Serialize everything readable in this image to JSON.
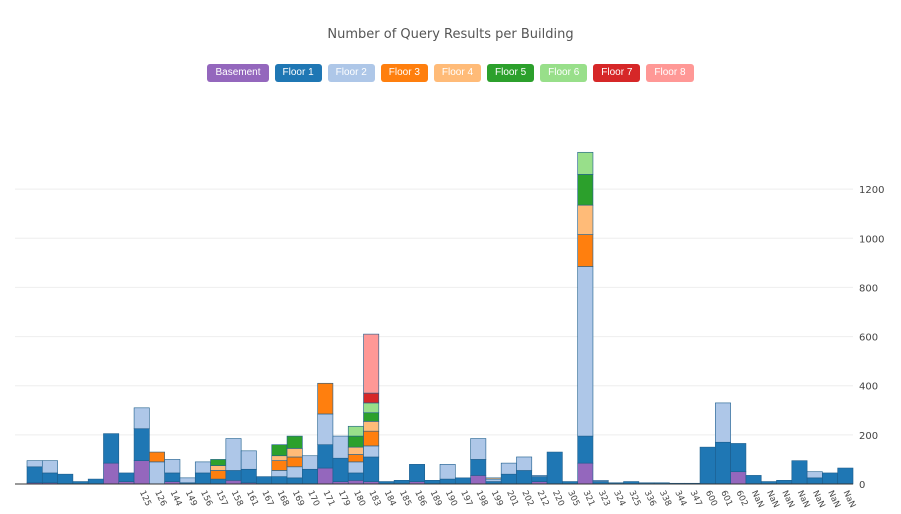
{
  "chart_data": {
    "type": "bar",
    "stacked": true,
    "title": "Number of Query Results per Building",
    "legend_position": "top-center",
    "grid": true,
    "y_axis_side": "right",
    "ylim": [
      0,
      1400
    ],
    "yticks": [
      0,
      200,
      400,
      600,
      800,
      1000,
      1200
    ],
    "categories": [
      "",
      "",
      "",
      "",
      "",
      "",
      "",
      "125",
      "126",
      "144",
      "149",
      "156",
      "157",
      "158",
      "161",
      "167",
      "168",
      "169",
      "170",
      "171",
      "179",
      "180",
      "183",
      "184",
      "185",
      "186",
      "189",
      "190",
      "197",
      "198",
      "199",
      "201",
      "202",
      "212",
      "220",
      "305",
      "321",
      "323",
      "324",
      "325",
      "336",
      "338",
      "344",
      "347",
      "600",
      "601",
      "602",
      "NaN",
      "NaN",
      "NaN",
      "NaN",
      "NaN",
      "NaN",
      "NaN"
    ],
    "series": [
      {
        "name": "Basement",
        "color": "#9467bd",
        "values": [
          5,
          5,
          0,
          0,
          0,
          85,
          10,
          95,
          0,
          10,
          0,
          0,
          0,
          15,
          5,
          0,
          0,
          0,
          0,
          65,
          10,
          15,
          10,
          0,
          0,
          10,
          0,
          0,
          0,
          35,
          0,
          0,
          0,
          10,
          0,
          0,
          85,
          0,
          0,
          0,
          0,
          0,
          0,
          0,
          0,
          0,
          50,
          0,
          0,
          0,
          0,
          0,
          0,
          0
        ]
      },
      {
        "name": "Floor 1",
        "color": "#1f77b4",
        "values": [
          65,
          40,
          40,
          10,
          20,
          120,
          35,
          130,
          0,
          35,
          5,
          45,
          20,
          40,
          55,
          30,
          30,
          25,
          60,
          95,
          95,
          30,
          100,
          10,
          15,
          70,
          15,
          20,
          25,
          65,
          10,
          40,
          55,
          20,
          130,
          10,
          110,
          10,
          5,
          10,
          5,
          5,
          3,
          3,
          150,
          170,
          115,
          35,
          10,
          15,
          95,
          25,
          45,
          65
        ]
      },
      {
        "name": "Floor 2",
        "color": "#aec7e8",
        "values": [
          25,
          50,
          0,
          0,
          0,
          0,
          0,
          85,
          90,
          55,
          20,
          45,
          0,
          130,
          75,
          0,
          25,
          45,
          55,
          125,
          90,
          45,
          45,
          0,
          0,
          0,
          0,
          60,
          0,
          85,
          10,
          45,
          55,
          5,
          0,
          0,
          690,
          5,
          0,
          0,
          0,
          0,
          0,
          0,
          0,
          160,
          0,
          0,
          0,
          0,
          0,
          25,
          0,
          0
        ]
      },
      {
        "name": "Floor 3",
        "color": "#ff7f0e",
        "values": [
          0,
          0,
          0,
          0,
          0,
          0,
          0,
          0,
          40,
          0,
          0,
          0,
          35,
          0,
          0,
          0,
          40,
          40,
          0,
          125,
          0,
          30,
          60,
          0,
          0,
          0,
          0,
          0,
          0,
          0,
          0,
          0,
          0,
          0,
          0,
          0,
          130,
          0,
          0,
          0,
          0,
          0,
          0,
          0,
          0,
          0,
          0,
          0,
          0,
          0,
          0,
          0,
          0,
          0
        ]
      },
      {
        "name": "Floor 4",
        "color": "#ffbb78",
        "values": [
          0,
          0,
          0,
          0,
          0,
          0,
          0,
          0,
          0,
          0,
          0,
          0,
          20,
          0,
          0,
          0,
          20,
          35,
          0,
          0,
          0,
          30,
          40,
          0,
          0,
          0,
          0,
          0,
          0,
          0,
          5,
          0,
          0,
          0,
          0,
          0,
          120,
          0,
          0,
          0,
          0,
          0,
          0,
          0,
          0,
          0,
          0,
          0,
          0,
          0,
          0,
          0,
          0,
          0
        ]
      },
      {
        "name": "Floor 5",
        "color": "#2ca02c",
        "values": [
          0,
          0,
          0,
          0,
          0,
          0,
          0,
          0,
          0,
          0,
          0,
          0,
          25,
          0,
          0,
          0,
          45,
          50,
          0,
          0,
          0,
          45,
          35,
          0,
          0,
          0,
          0,
          0,
          0,
          0,
          0,
          0,
          0,
          0,
          0,
          0,
          125,
          0,
          0,
          0,
          0,
          0,
          0,
          0,
          0,
          0,
          0,
          0,
          0,
          0,
          0,
          0,
          0,
          0
        ]
      },
      {
        "name": "Floor 6",
        "color": "#98df8a",
        "values": [
          0,
          0,
          0,
          0,
          0,
          0,
          0,
          0,
          0,
          0,
          0,
          0,
          0,
          0,
          0,
          0,
          0,
          0,
          0,
          0,
          0,
          40,
          40,
          0,
          0,
          0,
          0,
          0,
          0,
          0,
          0,
          0,
          0,
          0,
          0,
          0,
          90,
          0,
          0,
          0,
          0,
          0,
          0,
          0,
          0,
          0,
          0,
          0,
          0,
          0,
          0,
          0,
          0,
          0
        ]
      },
      {
        "name": "Floor 7",
        "color": "#d62728",
        "values": [
          0,
          0,
          0,
          0,
          0,
          0,
          0,
          0,
          0,
          0,
          0,
          0,
          0,
          0,
          0,
          0,
          0,
          0,
          0,
          0,
          0,
          0,
          40,
          0,
          0,
          0,
          0,
          0,
          0,
          0,
          0,
          0,
          0,
          0,
          0,
          0,
          0,
          0,
          0,
          0,
          0,
          0,
          0,
          0,
          0,
          0,
          0,
          0,
          0,
          0,
          0,
          0,
          0,
          0
        ]
      },
      {
        "name": "Floor 8",
        "color": "#ff9896",
        "values": [
          0,
          0,
          0,
          0,
          0,
          0,
          0,
          0,
          0,
          0,
          0,
          0,
          0,
          0,
          0,
          0,
          0,
          0,
          0,
          0,
          0,
          0,
          240,
          0,
          0,
          0,
          0,
          0,
          0,
          0,
          0,
          0,
          0,
          0,
          0,
          0,
          0,
          0,
          0,
          0,
          0,
          0,
          0,
          0,
          0,
          0,
          0,
          0,
          0,
          0,
          0,
          0,
          0,
          0
        ]
      }
    ]
  }
}
